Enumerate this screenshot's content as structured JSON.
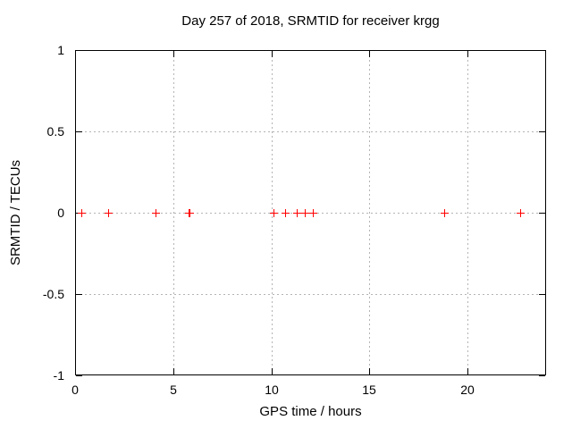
{
  "chart_data": {
    "type": "scatter",
    "title": "Day 257 of 2018, SRMTID for receiver krgg",
    "xlabel": "GPS time / hours",
    "ylabel": "SRMTID / TECUs",
    "xlim": [
      0,
      24
    ],
    "ylim": [
      -1,
      1
    ],
    "xticks": [
      0,
      5,
      10,
      15,
      20
    ],
    "xtick_labels": [
      "0",
      "5",
      "10",
      "15",
      "20"
    ],
    "yticks": [
      1,
      0.5,
      0,
      -0.5,
      -1
    ],
    "ytick_labels": [
      "1",
      "0.5",
      "0",
      "-0.5",
      "-1"
    ],
    "grid": "on",
    "legend": "none",
    "marker_shape": "plus",
    "x": [
      0.3,
      1.7,
      4.1,
      5.78,
      5.84,
      10.1,
      10.7,
      11.3,
      11.7,
      12.1,
      18.8,
      22.7
    ],
    "y": [
      0,
      0,
      0,
      0,
      0,
      0,
      0,
      0,
      0,
      0,
      0,
      0
    ]
  },
  "colors": {
    "background": "#ffffff",
    "axis": "#000000",
    "grid": "#b4b4b4",
    "marker": "#ff0000",
    "text": "#000000"
  }
}
